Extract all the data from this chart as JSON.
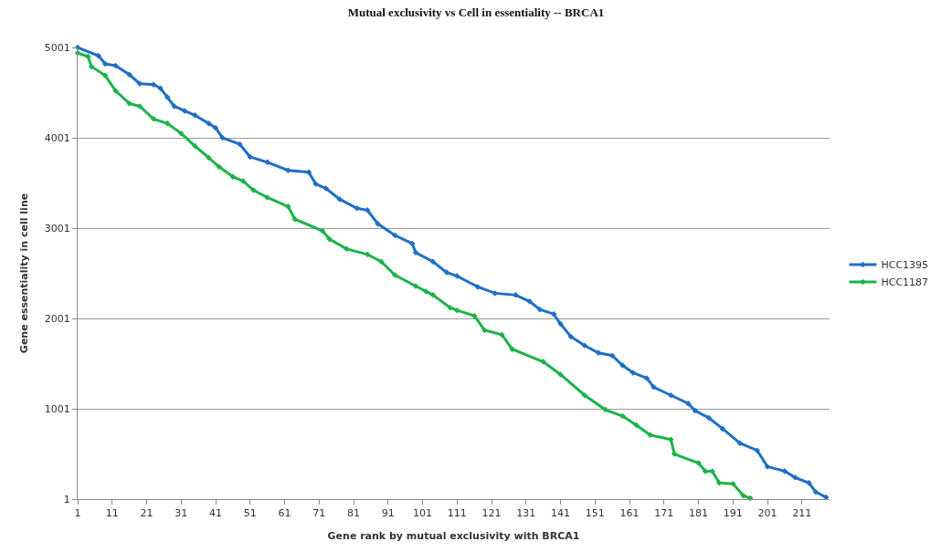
{
  "chart_data": {
    "type": "line",
    "title": "Mutual exclusivity vs Cell in essentiality -- BRCA1",
    "xlabel": "Gene rank by mutual exclusivity with BRCA1",
    "ylabel": "Gene essentiality in cell line",
    "xlim": [
      1,
      219
    ],
    "xticks": [
      1,
      11,
      21,
      31,
      41,
      51,
      61,
      71,
      81,
      91,
      101,
      111,
      121,
      131,
      141,
      151,
      161,
      171,
      181,
      191,
      201,
      211
    ],
    "ylim": [
      1,
      5001
    ],
    "yticks": [
      1,
      1001,
      2001,
      3001,
      4001,
      5001
    ],
    "grid": "y",
    "legend": "right",
    "marker": "diamond",
    "line_style": "solid",
    "series": [
      {
        "name": "HCC1395",
        "color": "#1f6fc6",
        "x": [
          1,
          7,
          9,
          12,
          16,
          19,
          23,
          25,
          27,
          29,
          32,
          35,
          39,
          41,
          43,
          48,
          51,
          56,
          62,
          68,
          70,
          73,
          77,
          82,
          85,
          88,
          93,
          98,
          99,
          104,
          108,
          111,
          117,
          122,
          128,
          132,
          135,
          139,
          141,
          144,
          148,
          152,
          156,
          159,
          162,
          166,
          168,
          173,
          178,
          180,
          184,
          188,
          193,
          198,
          201,
          206,
          209,
          213,
          215,
          218
        ],
        "values": [
          5000,
          4910,
          4820,
          4800,
          4700,
          4600,
          4590,
          4550,
          4450,
          4350,
          4300,
          4250,
          4160,
          4110,
          4000,
          3930,
          3790,
          3730,
          3640,
          3620,
          3490,
          3440,
          3320,
          3220,
          3200,
          3050,
          2920,
          2830,
          2730,
          2630,
          2510,
          2470,
          2350,
          2280,
          2260,
          2190,
          2100,
          2050,
          1940,
          1800,
          1700,
          1620,
          1590,
          1480,
          1400,
          1340,
          1240,
          1150,
          1060,
          980,
          900,
          780,
          620,
          540,
          360,
          310,
          240,
          180,
          80,
          20
        ]
      },
      {
        "name": "HCC1187",
        "color": "#1db34a",
        "x": [
          1,
          4,
          5,
          9,
          12,
          16,
          19,
          23,
          27,
          31,
          35,
          39,
          42,
          46,
          49,
          52,
          56,
          62,
          64,
          72,
          74,
          79,
          85,
          89,
          93,
          99,
          102,
          104,
          109,
          111,
          116,
          119,
          124,
          127,
          136,
          141,
          148,
          154,
          159,
          163,
          167,
          173,
          174,
          181,
          183,
          185,
          187,
          191,
          194,
          196
        ],
        "values": [
          4940,
          4900,
          4790,
          4690,
          4520,
          4380,
          4350,
          4210,
          4160,
          4050,
          3910,
          3780,
          3680,
          3570,
          3520,
          3420,
          3340,
          3240,
          3100,
          2970,
          2880,
          2770,
          2710,
          2630,
          2480,
          2360,
          2300,
          2260,
          2120,
          2090,
          2030,
          1870,
          1820,
          1660,
          1520,
          1380,
          1150,
          990,
          920,
          820,
          710,
          660,
          500,
          400,
          310,
          310,
          180,
          170,
          40,
          10
        ]
      }
    ]
  }
}
